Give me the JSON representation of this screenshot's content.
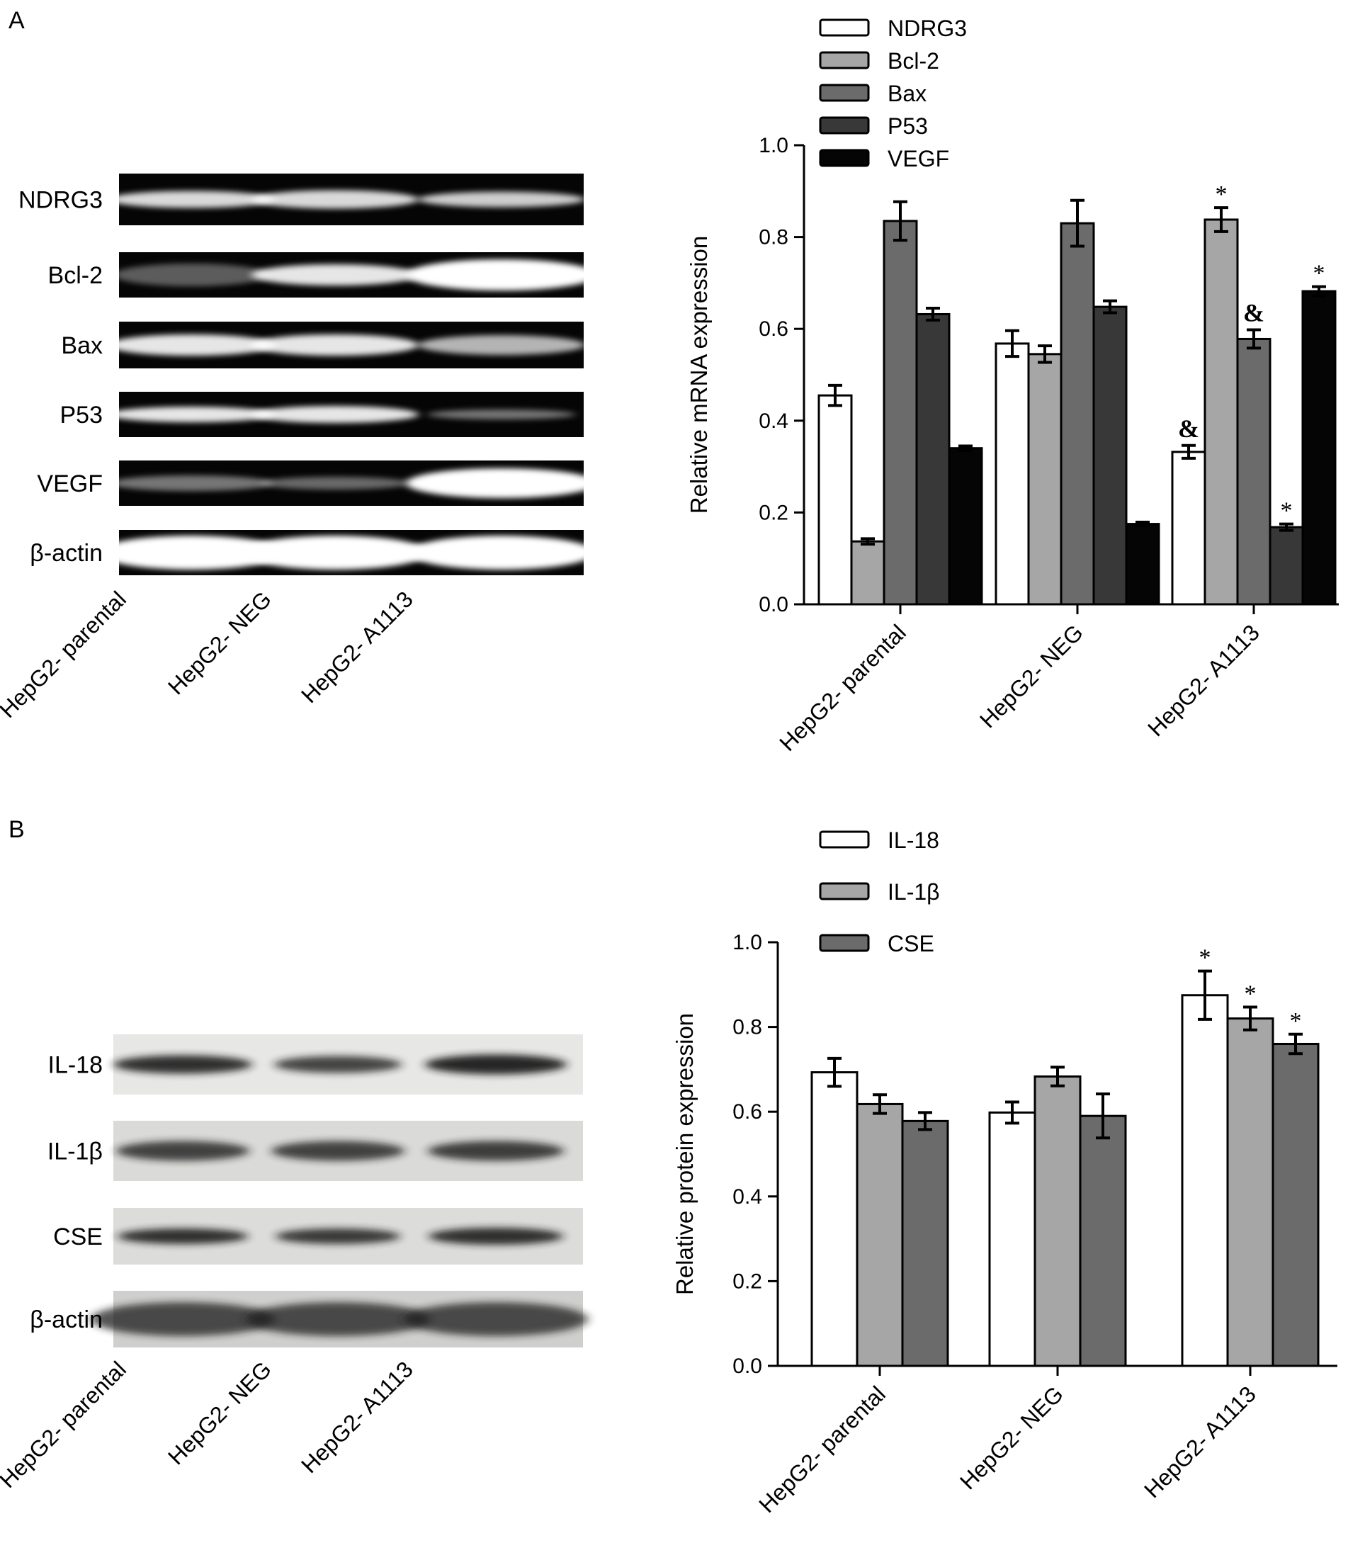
{
  "chart_data": [
    {
      "panel": "A",
      "type": "gel",
      "row_labels": [
        "NDRG3",
        "Bcl-2",
        "Bax",
        "P53",
        "VEGF",
        "β-actin"
      ],
      "lane_labels": [
        "HepG2- parental",
        "HepG2- NEG",
        "HepG2- A1113"
      ],
      "background": "dark"
    },
    {
      "panel": "A",
      "type": "bar",
      "ylabel": "Relative mRNA expression",
      "ylim": [
        0,
        1.0
      ],
      "yticks": [
        "0.0",
        "0.2",
        "0.4",
        "0.6",
        "0.8",
        "1.0"
      ],
      "grid": false,
      "legend_position": "top",
      "categories": [
        "HepG2- parental",
        "HepG2- NEG",
        "HepG2- A1113"
      ],
      "series": [
        {
          "name": "NDRG3",
          "color": "#ffffff",
          "values": [
            0.455,
            0.568,
            0.332
          ],
          "errors": [
            0.022,
            0.028,
            0.014
          ],
          "marks": [
            "",
            "",
            "&"
          ]
        },
        {
          "name": "Bcl-2",
          "color": "#a6a6a6",
          "values": [
            0.137,
            0.545,
            0.838
          ],
          "errors": [
            0.006,
            0.018,
            0.026
          ],
          "marks": [
            "",
            "",
            "*"
          ]
        },
        {
          "name": "Bax",
          "color": "#6b6b6b",
          "values": [
            0.835,
            0.83,
            0.578
          ],
          "errors": [
            0.042,
            0.05,
            0.02
          ],
          "marks": [
            "",
            "",
            "&"
          ]
        },
        {
          "name": "P53",
          "color": "#383838",
          "values": [
            0.632,
            0.648,
            0.168
          ],
          "errors": [
            0.013,
            0.013,
            0.007
          ],
          "marks": [
            "",
            "",
            "*"
          ]
        },
        {
          "name": "VEGF",
          "color": "#050505",
          "values": [
            0.34,
            0.175,
            0.682
          ],
          "errors": [
            0.005,
            0.004,
            0.01
          ],
          "marks": [
            "",
            "",
            "*"
          ]
        }
      ]
    },
    {
      "panel": "B",
      "type": "blot",
      "row_labels": [
        "IL-18",
        "IL-1β",
        "CSE",
        "β-actin"
      ],
      "lane_labels": [
        "HepG2- parental",
        "HepG2- NEG",
        "HepG2- A1113"
      ],
      "background": "light"
    },
    {
      "panel": "B",
      "type": "bar",
      "ylabel": "Relative protein expression",
      "ylim": [
        0,
        1.0
      ],
      "yticks": [
        "0.0",
        "0.2",
        "0.4",
        "0.6",
        "0.8",
        "1.0"
      ],
      "grid": false,
      "legend_position": "top",
      "categories": [
        "HepG2- parental",
        "HepG2- NEG",
        "HepG2- A1113"
      ],
      "series": [
        {
          "name": "IL-18",
          "color": "#ffffff",
          "values": [
            0.693,
            0.598,
            0.875
          ],
          "errors": [
            0.033,
            0.025,
            0.057
          ],
          "marks": [
            "",
            "",
            "*"
          ]
        },
        {
          "name": "IL-1β",
          "color": "#a6a6a6",
          "values": [
            0.618,
            0.683,
            0.82
          ],
          "errors": [
            0.022,
            0.022,
            0.027
          ],
          "marks": [
            "",
            "",
            "*"
          ]
        },
        {
          "name": "CSE",
          "color": "#6b6b6b",
          "values": [
            0.578,
            0.59,
            0.76
          ],
          "errors": [
            0.02,
            0.052,
            0.023
          ],
          "marks": [
            "",
            "",
            "*"
          ]
        }
      ]
    }
  ],
  "panels": {
    "a_letter": "A",
    "b_letter": "B"
  }
}
